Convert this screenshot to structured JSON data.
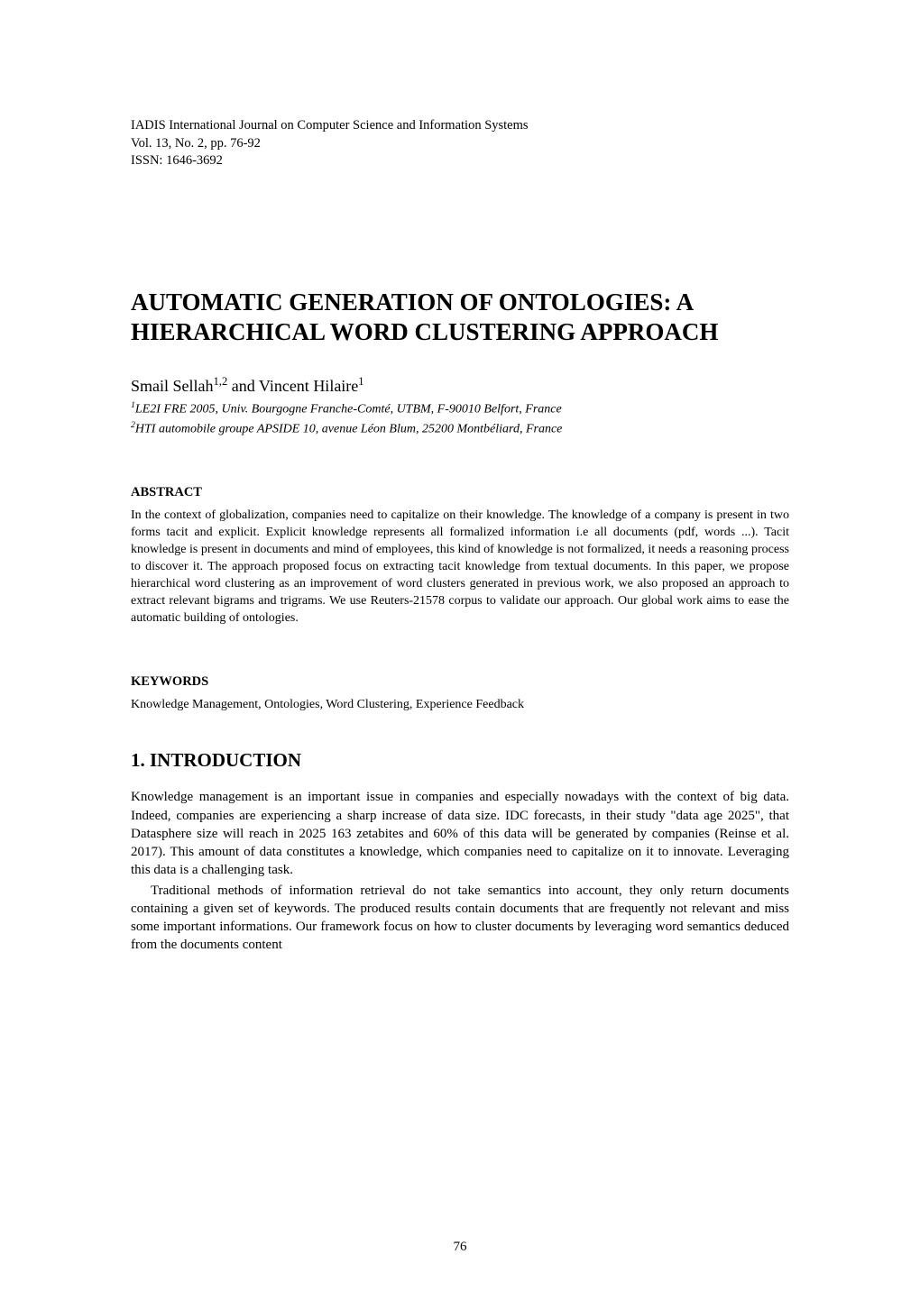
{
  "journal": {
    "name": "IADIS International Journal on Computer Science and Information Systems",
    "volume_line": "Vol. 13, No. 2, pp. 76-92",
    "issn": "ISSN: 1646-3692"
  },
  "title": "AUTOMATIC GENERATION OF ONTOLOGIES: A HIERARCHICAL WORD CLUSTERING APPROACH",
  "authors": {
    "line": "Smail Sellah",
    "sup1": "1,2",
    "connector": " and Vincent Hilaire",
    "sup2": "1"
  },
  "affiliations": {
    "aff1_sup": "1",
    "aff1": "LE2I FRE 2005, Univ. Bourgogne Franche-Comté, UTBM, F-90010 Belfort, France",
    "aff2_sup": "2",
    "aff2": "HTI automobile groupe APSIDE 10, avenue Léon Blum, 25200 Montbéliard, France"
  },
  "abstract": {
    "label": "ABSTRACT",
    "text": "In the context of globalization, companies need to capitalize on their knowledge. The knowledge of a company is present in two forms tacit and explicit. Explicit knowledge represents all formalized information i.e all documents (pdf, words ...). Tacit knowledge is present in documents and mind of employees, this kind of knowledge is not formalized, it needs a reasoning process to discover it. The approach proposed focus on extracting tacit knowledge from textual documents. In this paper, we propose hierarchical word clustering as an improvement of word clusters generated in previous work, we also proposed an approach to extract relevant bigrams and trigrams. We use Reuters-21578 corpus to validate our approach. Our global work aims to ease the automatic building of ontologies."
  },
  "keywords": {
    "label": "KEYWORDS",
    "text": "Knowledge Management, Ontologies, Word Clustering, Experience Feedback"
  },
  "section1": {
    "heading": "1.   INTRODUCTION",
    "p1": "Knowledge management is an important issue in companies and especially nowadays with the context of big data. Indeed, companies are experiencing a sharp increase of data size. IDC forecasts, in their study \"data age 2025\", that Datasphere size will reach in 2025 163 zetabites and 60% of this data will be generated by companies (Reinse et al. 2017). This amount of data constitutes a knowledge, which companies need to capitalize on it to innovate. Leveraging this data is a challenging task.",
    "p2": "Traditional methods of information retrieval do not take semantics into account, they only return documents containing a given set of keywords. The produced results contain documents that are frequently not relevant and miss some important informations. Our framework focus on how to cluster documents by leveraging word semantics deduced from the documents content"
  },
  "page_number": "76",
  "style": {
    "background_color": "#ffffff",
    "text_color": "#000000",
    "font_family": "Times New Roman",
    "title_fontsize": 27,
    "body_fontsize": 15,
    "abstract_fontsize": 14,
    "heading_fontsize": 21,
    "journal_fontsize": 14.5
  }
}
